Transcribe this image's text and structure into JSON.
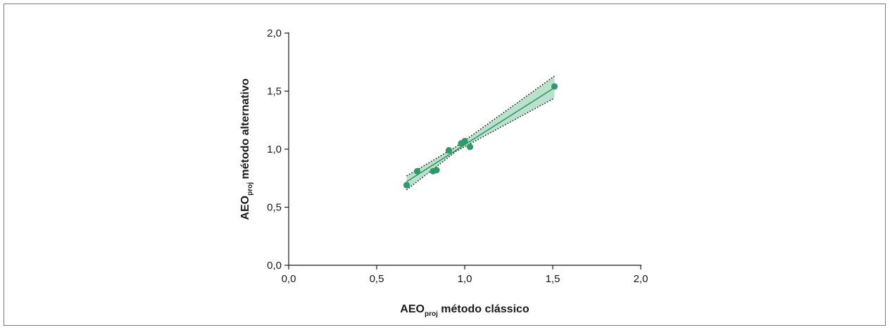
{
  "chart_data": {
    "type": "scatter",
    "title": "",
    "xlabel": {
      "main": "AEO",
      "sub": "proj",
      "rest": " método clássico"
    },
    "ylabel": {
      "main": "AEO",
      "sub": "proj",
      "rest": " método alternativo"
    },
    "xlim": [
      0,
      2
    ],
    "ylim": [
      0,
      2
    ],
    "x_ticks": [
      "0,0",
      "0,5",
      "1,0",
      "1,5",
      "2,0"
    ],
    "x_tick_values": [
      0,
      0.5,
      1,
      1.5,
      2
    ],
    "y_ticks": [
      "0,0",
      "0,5",
      "1,0",
      "1,5",
      "2,0"
    ],
    "y_tick_values": [
      0,
      0.5,
      1,
      1.5,
      2
    ],
    "grid": false,
    "legend": "none",
    "points": [
      {
        "x": 0.67,
        "y": 0.69
      },
      {
        "x": 0.73,
        "y": 0.81
      },
      {
        "x": 0.82,
        "y": 0.81
      },
      {
        "x": 0.84,
        "y": 0.82
      },
      {
        "x": 0.91,
        "y": 0.99
      },
      {
        "x": 0.98,
        "y": 1.05
      },
      {
        "x": 1.0,
        "y": 1.07
      },
      {
        "x": 1.03,
        "y": 1.02
      },
      {
        "x": 1.51,
        "y": 1.54
      }
    ],
    "regression": {
      "x": [
        0.67,
        1.51
      ],
      "y": [
        0.72,
        1.53
      ]
    },
    "confidence_band": {
      "x": [
        0.67,
        0.95,
        1.51
      ],
      "upper": [
        0.77,
        1.02,
        1.63
      ],
      "lower": [
        0.65,
        0.98,
        1.44
      ]
    },
    "colors": {
      "point": "#2e9a68",
      "line": "#2e9a68",
      "band": "#a8d9bf",
      "band_edge": "#1a1a1a",
      "axis": "#1a1a1a"
    }
  }
}
